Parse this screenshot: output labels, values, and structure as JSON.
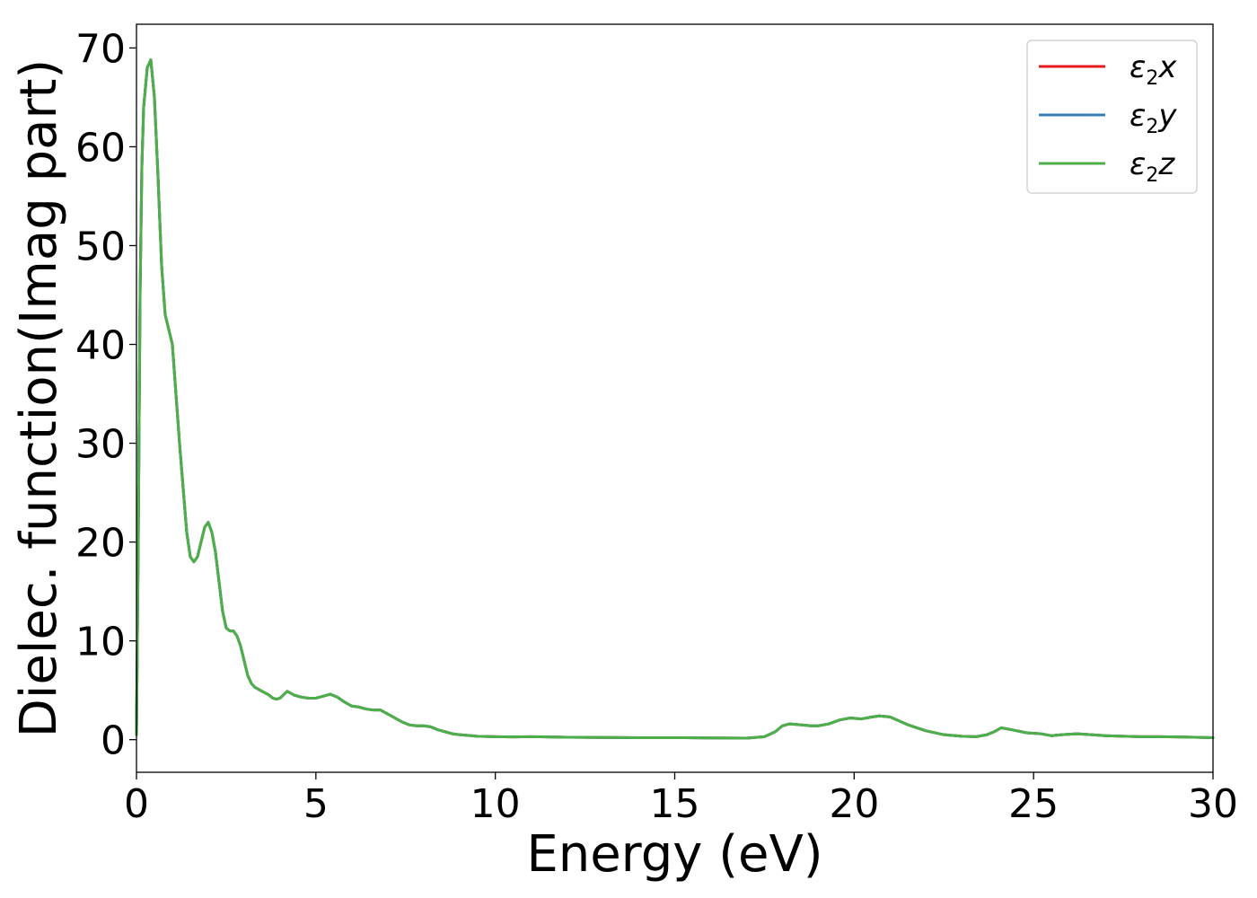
{
  "chart_data": {
    "type": "line",
    "xlabel": "Energy (eV)",
    "ylabel": "Dielec. function(Imag part)",
    "xlim": [
      0,
      30
    ],
    "ylim": [
      -3.3,
      72.4
    ],
    "xticks": [
      0,
      5,
      10,
      15,
      20,
      25,
      30
    ],
    "yticks": [
      0,
      10,
      20,
      30,
      40,
      50,
      60,
      70
    ],
    "grid": false,
    "legend_position": "top-right",
    "colors": {
      "x": "#e41a1c",
      "y": "#377eb8",
      "z": "#4daf4a"
    },
    "series": [
      {
        "name": "ε2x",
        "base": "ε",
        "sub": "2",
        "suffix": "x",
        "color": "#e41a1c"
      },
      {
        "name": "ε2y",
        "base": "ε",
        "sub": "2",
        "suffix": "y",
        "color": "#377eb8"
      },
      {
        "name": "ε2z",
        "base": "ε",
        "sub": "2",
        "suffix": "z",
        "color": "#4daf4a"
      }
    ],
    "x": [
      0.0,
      0.05,
      0.1,
      0.15,
      0.2,
      0.3,
      0.4,
      0.5,
      0.6,
      0.7,
      0.8,
      0.9,
      1.0,
      1.1,
      1.2,
      1.3,
      1.4,
      1.5,
      1.6,
      1.7,
      1.8,
      1.9,
      2.0,
      2.1,
      2.2,
      2.3,
      2.4,
      2.5,
      2.6,
      2.7,
      2.8,
      2.9,
      3.0,
      3.1,
      3.2,
      3.3,
      3.4,
      3.5,
      3.6,
      3.7,
      3.8,
      3.9,
      4.0,
      4.2,
      4.4,
      4.6,
      4.8,
      5.0,
      5.2,
      5.4,
      5.6,
      5.8,
      6.0,
      6.2,
      6.4,
      6.6,
      6.8,
      7.0,
      7.2,
      7.4,
      7.6,
      7.8,
      8.0,
      8.2,
      8.4,
      8.6,
      8.8,
      9.0,
      9.5,
      10.0,
      10.5,
      11.0,
      11.5,
      12.0,
      13.0,
      14.0,
      15.0,
      16.0,
      17.0,
      17.5,
      17.8,
      18.0,
      18.2,
      18.5,
      18.8,
      19.0,
      19.3,
      19.6,
      19.9,
      20.2,
      20.5,
      20.7,
      21.0,
      21.5,
      22.0,
      22.5,
      23.0,
      23.4,
      23.7,
      23.9,
      24.1,
      24.4,
      24.8,
      25.2,
      25.5,
      25.8,
      26.2,
      26.6,
      27.0,
      27.5,
      28.0,
      28.5,
      29.0,
      29.5,
      30.0
    ],
    "values": [
      0.5,
      20.0,
      45.0,
      58.0,
      64.0,
      68.0,
      68.8,
      65.0,
      57.0,
      48.0,
      43.0,
      41.5,
      40.0,
      35.0,
      30.0,
      25.5,
      21.0,
      18.5,
      18.0,
      18.5,
      20.0,
      21.5,
      22.0,
      21.0,
      19.0,
      16.0,
      13.0,
      11.3,
      11.0,
      11.0,
      10.5,
      9.5,
      8.0,
      6.5,
      5.7,
      5.3,
      5.1,
      4.9,
      4.7,
      4.5,
      4.2,
      4.1,
      4.2,
      4.9,
      4.5,
      4.3,
      4.2,
      4.2,
      4.4,
      4.6,
      4.3,
      3.8,
      3.4,
      3.3,
      3.1,
      3.0,
      3.0,
      2.6,
      2.2,
      1.8,
      1.5,
      1.4,
      1.4,
      1.3,
      1.0,
      0.8,
      0.6,
      0.5,
      0.35,
      0.3,
      0.28,
      0.3,
      0.28,
      0.25,
      0.22,
      0.2,
      0.2,
      0.18,
      0.15,
      0.3,
      0.8,
      1.4,
      1.6,
      1.5,
      1.4,
      1.4,
      1.6,
      2.0,
      2.2,
      2.1,
      2.3,
      2.4,
      2.3,
      1.5,
      0.9,
      0.5,
      0.35,
      0.3,
      0.5,
      0.8,
      1.2,
      1.0,
      0.7,
      0.6,
      0.4,
      0.5,
      0.6,
      0.5,
      0.4,
      0.35,
      0.3,
      0.3,
      0.28,
      0.25,
      0.2
    ]
  }
}
